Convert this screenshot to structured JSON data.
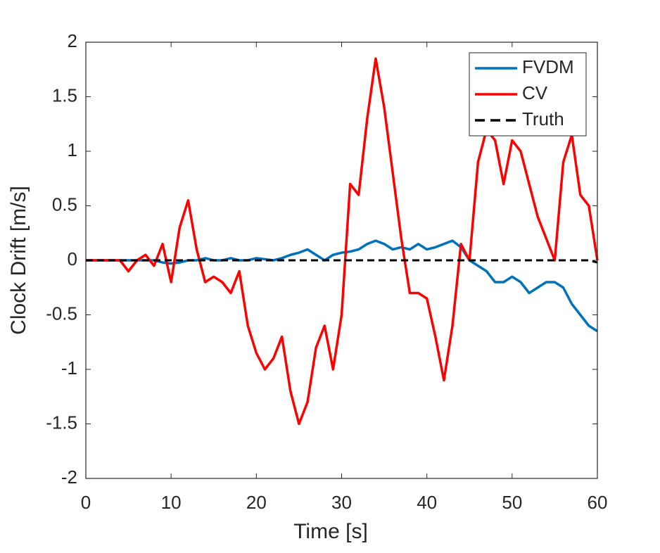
{
  "chart_data": {
    "type": "line",
    "xlabel": "Time [s]",
    "ylabel": "Clock Drift [m/s]",
    "x": [
      0,
      1,
      2,
      3,
      4,
      5,
      6,
      7,
      8,
      9,
      10,
      11,
      12,
      13,
      14,
      15,
      16,
      17,
      18,
      19,
      20,
      21,
      22,
      23,
      24,
      25,
      26,
      27,
      28,
      29,
      30,
      31,
      32,
      33,
      34,
      35,
      36,
      37,
      38,
      39,
      40,
      41,
      42,
      43,
      44,
      45,
      46,
      47,
      48,
      49,
      50,
      51,
      52,
      53,
      54,
      55,
      56,
      57,
      58,
      59,
      60
    ],
    "series": [
      {
        "name": "FVDM",
        "color": "#0072bd",
        "dash": false,
        "values": [
          0,
          0,
          0,
          0,
          0,
          0,
          0,
          0,
          0,
          -0.02,
          -0.03,
          -0.02,
          0,
          0,
          0.02,
          0,
          0,
          0.02,
          0,
          0,
          0.02,
          0.01,
          0,
          0.02,
          0.05,
          0.07,
          0.1,
          0.05,
          0,
          0.05,
          0.07,
          0.08,
          0.1,
          0.15,
          0.18,
          0.15,
          0.1,
          0.12,
          0.1,
          0.15,
          0.1,
          0.12,
          0.15,
          0.18,
          0.12,
          0,
          -0.05,
          -0.1,
          -0.2,
          -0.2,
          -0.15,
          -0.2,
          -0.3,
          -0.25,
          -0.2,
          -0.2,
          -0.25,
          -0.4,
          -0.5,
          -0.6,
          -0.65
        ]
      },
      {
        "name": "CV",
        "color": "#ff0000",
        "dash": false,
        "values": [
          0,
          0,
          0,
          0,
          0,
          -0.1,
          0,
          0.05,
          -0.05,
          0.15,
          -0.2,
          0.3,
          0.55,
          0.1,
          -0.2,
          -0.15,
          -0.2,
          -0.3,
          -0.1,
          -0.6,
          -0.85,
          -1.0,
          -0.9,
          -0.7,
          -1.2,
          -1.5,
          -1.3,
          -0.8,
          -0.6,
          -1.0,
          -0.5,
          0.7,
          0.6,
          1.3,
          1.85,
          1.4,
          0.8,
          0.2,
          -0.3,
          -0.3,
          -0.35,
          -0.7,
          -1.1,
          -0.6,
          0.15,
          0,
          0.9,
          1.2,
          1.1,
          0.7,
          1.1,
          1.0,
          0.7,
          0.4,
          0.2,
          0,
          0.9,
          1.15,
          0.6,
          0.5,
          0
        ]
      },
      {
        "name": "Truth",
        "color": "#000000",
        "dash": true,
        "values": [
          0,
          0,
          0,
          0,
          0,
          0,
          0,
          0,
          0,
          0,
          0,
          0,
          0,
          0,
          0,
          0,
          0,
          0,
          0,
          0,
          0,
          0,
          0,
          0,
          0,
          0,
          0,
          0,
          0,
          0,
          0,
          0,
          0,
          0,
          0,
          0,
          0,
          0,
          0,
          0,
          0,
          0,
          0,
          0,
          0,
          0,
          0,
          0,
          0,
          0,
          0,
          0,
          0,
          0,
          0,
          0,
          0,
          0,
          0,
          0,
          -0.02
        ]
      }
    ],
    "xlim": [
      0,
      60
    ],
    "xticks": [
      0,
      10,
      20,
      30,
      40,
      50,
      60
    ],
    "ylim": [
      -2,
      2
    ],
    "yticks": [
      -2,
      -1.5,
      -1,
      -0.5,
      0,
      0.5,
      1,
      1.5,
      2
    ],
    "grid": false,
    "legend": "northeast"
  }
}
